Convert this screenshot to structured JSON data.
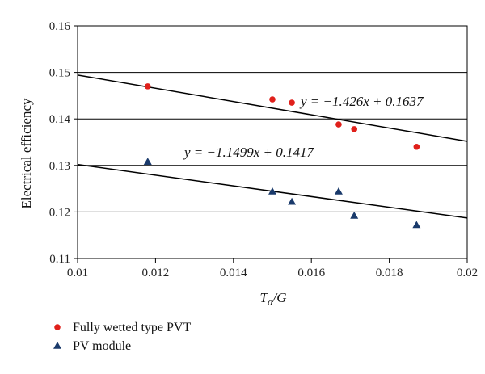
{
  "chart_data": {
    "type": "scatter",
    "xlabel": "Ta/G",
    "ylabel": "Electrical efficiency",
    "xlim": [
      0.01,
      0.02
    ],
    "ylim": [
      0.11,
      0.16
    ],
    "xticks": [
      0.01,
      0.012,
      0.014,
      0.016,
      0.018,
      0.02
    ],
    "yticks": [
      0.11,
      0.12,
      0.13,
      0.14,
      0.15,
      0.16
    ],
    "xtick_labels": [
      "0.01",
      "0.012",
      "0.014",
      "0.016",
      "0.018",
      "0.02"
    ],
    "ytick_labels": [
      "0.11",
      "0.12",
      "0.13",
      "0.14",
      "0.15",
      "0.16"
    ],
    "grid": "horizontal",
    "legend_position": "bottom-left",
    "series": [
      {
        "name": "Fully wetted type PVT",
        "marker": "circle",
        "color": "#e0201b",
        "x": [
          0.0118,
          0.015,
          0.0155,
          0.0167,
          0.0171,
          0.0187
        ],
        "y": [
          0.147,
          0.1442,
          0.1435,
          0.1388,
          0.1378,
          0.134
        ],
        "fit": {
          "slope": -1.426,
          "intercept": 0.1637,
          "label": "y = −1.426x + 0.1637"
        }
      },
      {
        "name": "PV module",
        "marker": "triangle",
        "color": "#1a3a6b",
        "x": [
          0.0118,
          0.015,
          0.0155,
          0.0167,
          0.0171,
          0.0187
        ],
        "y": [
          0.1308,
          0.1244,
          0.1222,
          0.1244,
          0.1192,
          0.1172
        ],
        "fit": {
          "slope": -1.1499,
          "intercept": 0.1417,
          "label": "y = −1.1499x + 0.1417"
        }
      }
    ]
  }
}
